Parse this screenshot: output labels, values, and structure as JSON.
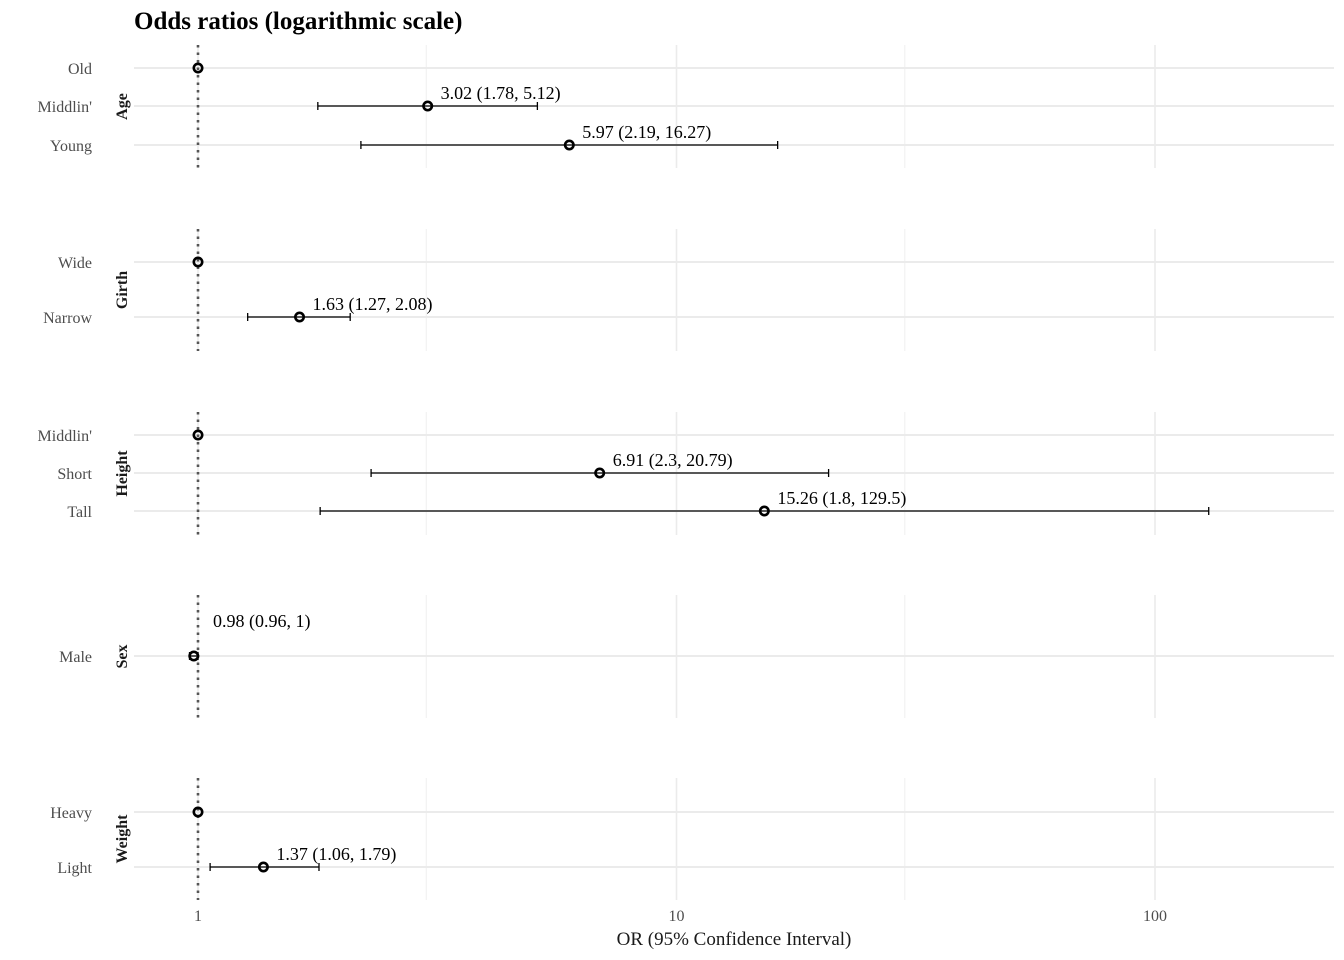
{
  "chart_data": {
    "type": "forest",
    "title": "Odds ratios (logarithmic scale)",
    "xlabel": "OR (95% Confidence Interval)",
    "x_scale": "log",
    "x_ticks": [
      {
        "value": 1,
        "label": "1"
      },
      {
        "value": 10,
        "label": "10"
      },
      {
        "value": 100,
        "label": "100"
      }
    ],
    "x_minor_gridlines": [
      3,
      30
    ],
    "xlim": [
      0.7,
      170
    ],
    "reference_line": 1,
    "panels": [
      {
        "label": "Age",
        "rows": [
          {
            "category": "Old",
            "or": 1,
            "reference": true
          },
          {
            "category": "Middlin'",
            "or": 3.02,
            "lower": 1.78,
            "upper": 5.12,
            "annotation": "3.02 (1.78, 5.12)"
          },
          {
            "category": "Young",
            "or": 5.97,
            "lower": 2.19,
            "upper": 16.27,
            "annotation": "5.97 (2.19, 16.27)"
          }
        ]
      },
      {
        "label": "Girth",
        "rows": [
          {
            "category": "Wide",
            "or": 1,
            "reference": true
          },
          {
            "category": "Narrow",
            "or": 1.63,
            "lower": 1.27,
            "upper": 2.08,
            "annotation": "1.63 (1.27, 2.08)"
          }
        ]
      },
      {
        "label": "Height",
        "rows": [
          {
            "category": "Middlin'",
            "or": 1,
            "reference": true
          },
          {
            "category": "Short",
            "or": 6.91,
            "lower": 2.3,
            "upper": 20.79,
            "annotation": "6.91 (2.3, 20.79)"
          },
          {
            "category": "Tall",
            "or": 15.26,
            "lower": 1.8,
            "upper": 129.5,
            "annotation": "15.26 (1.8, 129.5)"
          }
        ]
      },
      {
        "label": "Sex",
        "rows": [
          {
            "category": "Male",
            "or": 0.98,
            "lower": 0.96,
            "upper": 1,
            "annotation": "0.98 (0.96, 1)"
          }
        ]
      },
      {
        "label": "Weight",
        "rows": [
          {
            "category": "Heavy",
            "or": 1,
            "reference": true
          },
          {
            "category": "Light",
            "or": 1.37,
            "lower": 1.06,
            "upper": 1.79,
            "annotation": "1.37 (1.06, 1.79)"
          }
        ]
      }
    ]
  }
}
